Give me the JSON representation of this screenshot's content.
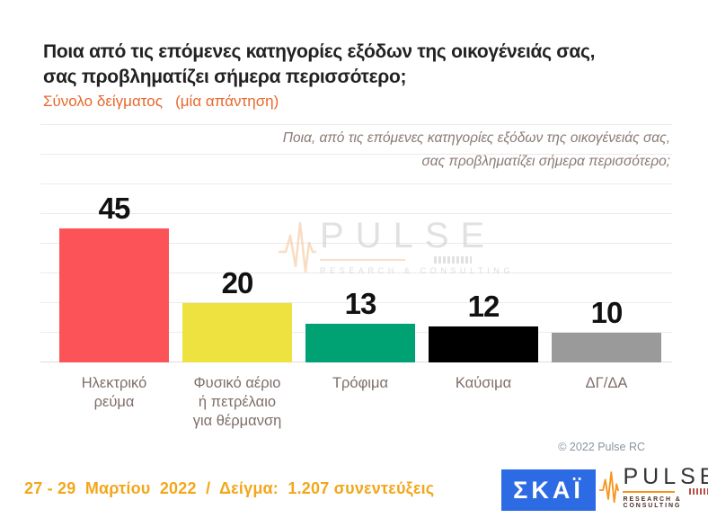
{
  "title": {
    "line1": "Ποια από τις επόμενες κατηγορίες εξόδων της οικογένειάς σας,",
    "line2": "σας προβληματίζει σήμερα περισσότερο;"
  },
  "subtitle": "Σύνολο δείγματος   (μία απάντηση)",
  "annotation": {
    "line1": "Ποια, από τις επόμενες κατηγορίες εξόδων της οικογένειάς σας,",
    "line2": "σας προβληματίζει σήμερα περισσότερο;"
  },
  "chart_data": {
    "type": "bar",
    "title": "Ποια από τις επόμενες κατηγορίες εξόδων της οικογένειάς σας, σας προβληματίζει σήμερα περισσότερο;",
    "categories": [
      "Ηλεκτρικό ρεύμα",
      "Φυσικό αέριο ή πετρέλαιο για θέρμανση",
      "Τρόφιμα",
      "Καύσιμα",
      "ΔΓ/ΔΑ"
    ],
    "display_labels": [
      "Ηλεκτρικό\nρεύμα",
      "Φυσικό αέριο\nή πετρέλαιο\nγια θέρμανση",
      "Τρόφιμα",
      "Καύσιμα",
      "ΔΓ/ΔΑ"
    ],
    "values": [
      45,
      20,
      13,
      12,
      10
    ],
    "bar_colors": [
      "#FB5357",
      "#EDE23F",
      "#00A173",
      "#000000",
      "#9A9A9A"
    ],
    "xlabel": "",
    "ylabel": "",
    "ylim": [
      0,
      80
    ],
    "grid_step": 10,
    "grid": true,
    "legend": "none",
    "value_labels": true
  },
  "watermark": {
    "name": "PULSE",
    "tagline": "RESEARCH & CONSULTING"
  },
  "copyright": "© 2022 Pulse RC",
  "footer": {
    "fieldwork": "27 - 29  Μαρτίου  2022  /  Δείγμα:  1.207 συνεντεύξεις"
  },
  "logos": {
    "skai_text": "ΣΚΑΪ",
    "pulse_name": "PULSE",
    "pulse_tagline": "RESEARCH & CONSULTING"
  },
  "colors": {
    "subtitle_orange": "#E8672C",
    "footer_amber": "#F2A71B",
    "skai_blue": "#2D6BE4",
    "pulse_orange": "#F7941D",
    "axis_label": "#7E6E68"
  }
}
